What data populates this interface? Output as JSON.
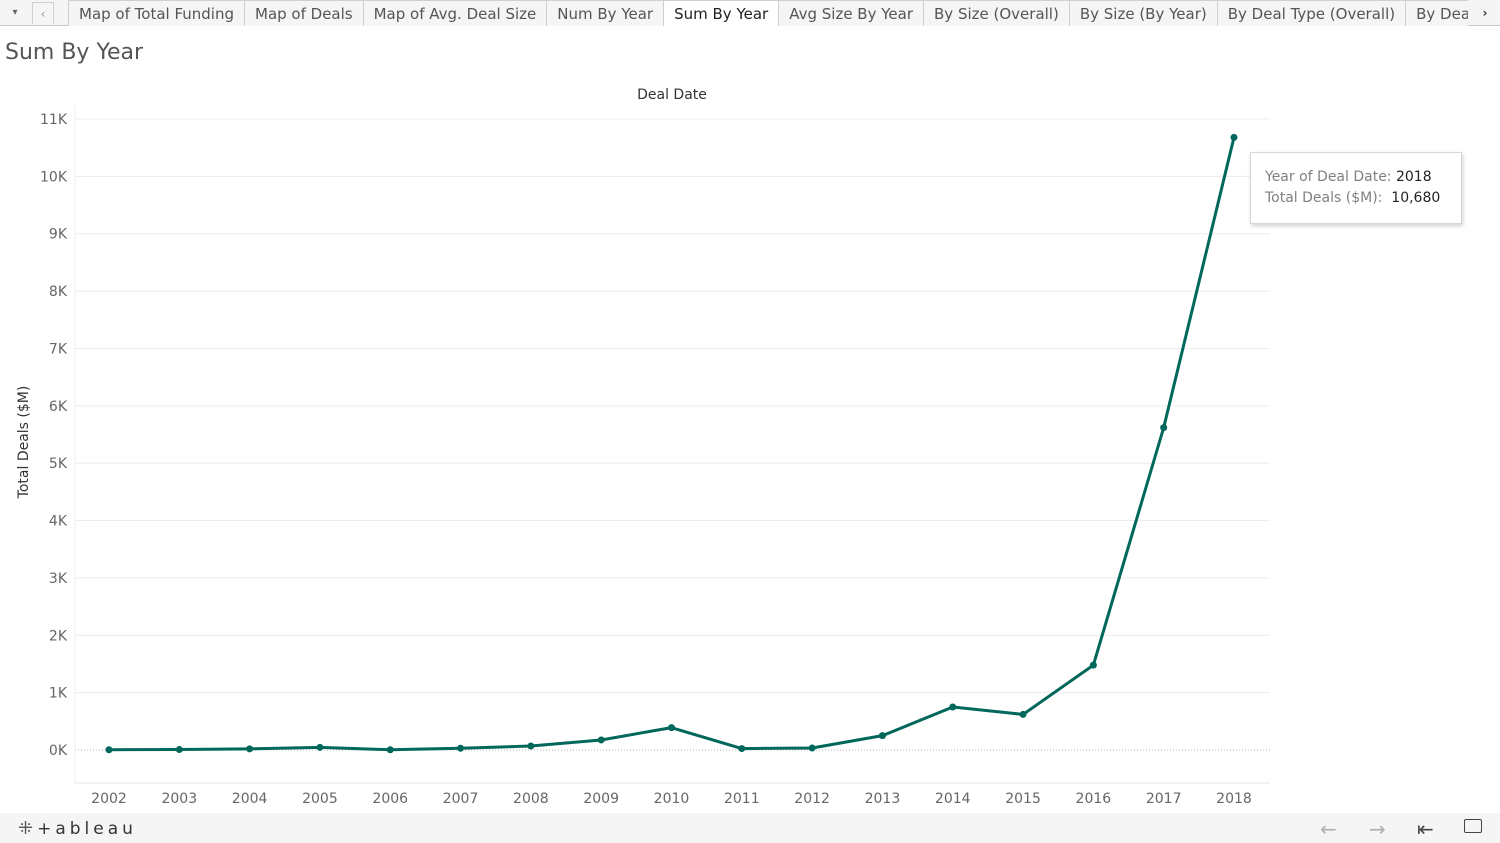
{
  "tabbar": {
    "menu_icon": "▾",
    "prev_icon": "‹",
    "next_icon": "›",
    "tabs": [
      {
        "label": "Map of Total Funding"
      },
      {
        "label": "Map of Deals"
      },
      {
        "label": "Map of Avg. Deal Size"
      },
      {
        "label": "Num By Year"
      },
      {
        "label": "Sum By Year",
        "active": true
      },
      {
        "label": "Avg Size By Year"
      },
      {
        "label": "By Size (Overall)"
      },
      {
        "label": "By Size (By Year)"
      },
      {
        "label": "By Deal Type (Overall)"
      },
      {
        "label": "By Deal Type (B"
      }
    ]
  },
  "sheet_title": "Sum By Year",
  "chart_data": {
    "type": "line",
    "title": "Deal Date",
    "xlabel": "",
    "ylabel": "Total Deals ($M)",
    "categories": [
      "2002",
      "2003",
      "2004",
      "2005",
      "2006",
      "2007",
      "2008",
      "2009",
      "2010",
      "2011",
      "2012",
      "2013",
      "2014",
      "2015",
      "2016",
      "2017",
      "2018"
    ],
    "series": [
      {
        "values": [
          5,
          8,
          20,
          45,
          5,
          30,
          70,
          175,
          390,
          25,
          35,
          250,
          750,
          620,
          1480,
          5620,
          10680
        ]
      }
    ],
    "ylim": [
      0,
      11000
    ],
    "yticks": [
      0,
      1000,
      2000,
      3000,
      4000,
      5000,
      6000,
      7000,
      8000,
      9000,
      10000,
      11000
    ],
    "ytick_labels": [
      "0K",
      "1K",
      "2K",
      "3K",
      "4K",
      "5K",
      "6K",
      "7K",
      "8K",
      "9K",
      "10K",
      "11K"
    ],
    "grid": true,
    "line_color": "#00675b"
  },
  "tooltip": {
    "label1": "Year of Deal Date:",
    "value1": "2018",
    "label2": "Total Deals ($M):",
    "value2": "10,680"
  },
  "footer": {
    "logo_text": "+ableau",
    "logo_icon": "tableau-logo-icon",
    "buttons": [
      "undo-icon",
      "redo-icon",
      "revert-icon",
      "fullscreen-icon"
    ]
  }
}
